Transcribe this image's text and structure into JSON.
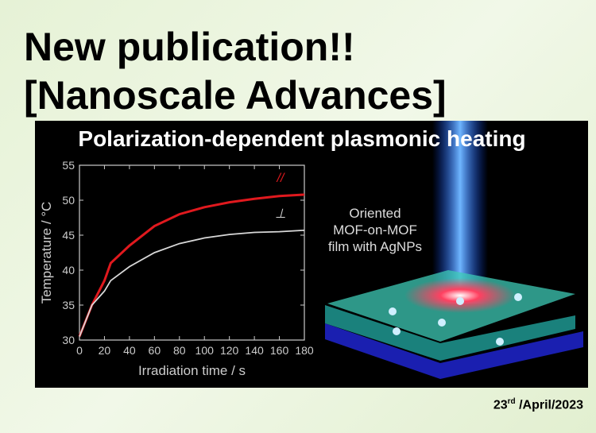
{
  "header": {
    "line1": "New publication!!",
    "line2": "[Nanoscale Advances]"
  },
  "panel_title": "Polarization-dependent plasmonic heating",
  "chart_data": {
    "type": "line",
    "xlabel": "Irradiation time / s",
    "ylabel": "Temperature / °C",
    "x": [
      0,
      10,
      20,
      25,
      40,
      60,
      80,
      100,
      120,
      140,
      160,
      180
    ],
    "series": [
      {
        "name": "//",
        "color": "#e0191e",
        "values": [
          30.5,
          35,
          38.5,
          41,
          43.5,
          46.3,
          48,
          49,
          49.7,
          50.2,
          50.6,
          50.8
        ]
      },
      {
        "name": "⊥",
        "color": "#d8d8d8",
        "values": [
          30.5,
          35,
          37,
          38.5,
          40.5,
          42.5,
          43.8,
          44.6,
          45.1,
          45.4,
          45.5,
          45.7
        ]
      }
    ],
    "xlim": [
      0,
      180
    ],
    "xticks": [
      0,
      20,
      40,
      60,
      80,
      100,
      120,
      140,
      160,
      180
    ],
    "ylim": [
      30,
      55
    ],
    "yticks": [
      30,
      35,
      40,
      45,
      50,
      55
    ]
  },
  "illustration": {
    "lines": [
      "Oriented",
      "MOF-on-MOF",
      "film with AgNPs"
    ]
  },
  "date": {
    "day": "23",
    "suffix": "rd",
    "rest": " /April/2023"
  }
}
